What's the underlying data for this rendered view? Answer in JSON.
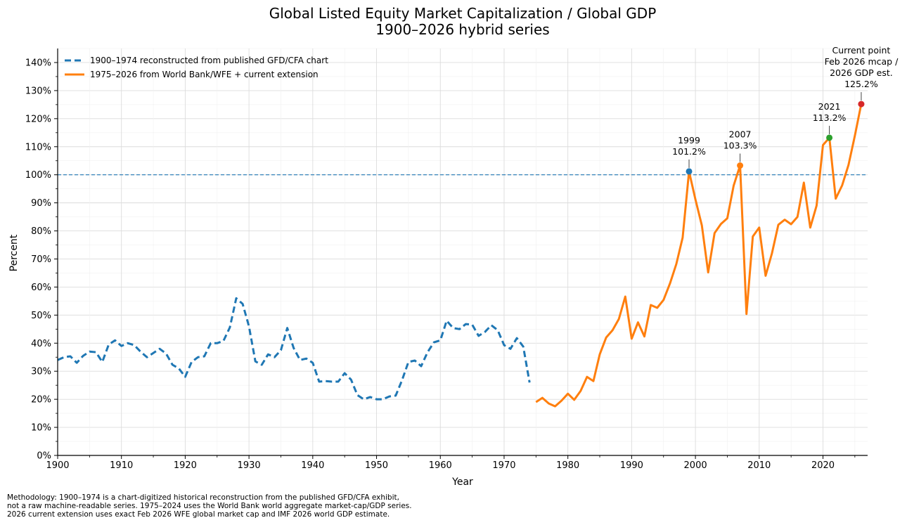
{
  "chart_data": {
    "type": "line",
    "title": "Global Listed Equity Market Capitalization / Global GDP",
    "subtitle": "1900–2026 hybrid series",
    "xlabel": "Year",
    "ylabel": "Percent",
    "xlim": [
      1900,
      2027
    ],
    "ylim": [
      0,
      145
    ],
    "x_ticks": [
      1900,
      1910,
      1920,
      1930,
      1940,
      1950,
      1960,
      1970,
      1980,
      1990,
      2000,
      2010,
      2020
    ],
    "x_tick_labels": [
      "1900",
      "1910",
      "1920",
      "1930",
      "1940",
      "1950",
      "1960",
      "1970",
      "1980",
      "1990",
      "2000",
      "2010",
      "2020"
    ],
    "y_ticks": [
      0,
      10,
      20,
      30,
      40,
      50,
      60,
      70,
      80,
      90,
      100,
      110,
      120,
      130,
      140
    ],
    "y_tick_labels": [
      "0%",
      "10%",
      "20%",
      "30%",
      "40%",
      "50%",
      "60%",
      "70%",
      "80%",
      "90%",
      "100%",
      "110%",
      "120%",
      "130%",
      "140%"
    ],
    "grid": true,
    "minor_grid": true,
    "legend_position": "top-left",
    "reference_line": {
      "y": 100,
      "style": "dashed",
      "color": "#1f77b4"
    },
    "series": [
      {
        "name": "1900–1974 reconstructed from published GFD/CFA chart",
        "color": "#1f77b4",
        "style": "dashed",
        "x": [
          1900,
          1901,
          1902,
          1903,
          1904,
          1905,
          1906,
          1907,
          1908,
          1909,
          1910,
          1911,
          1912,
          1913,
          1914,
          1915,
          1916,
          1917,
          1918,
          1919,
          1920,
          1921,
          1922,
          1923,
          1924,
          1925,
          1926,
          1927,
          1928,
          1929,
          1930,
          1931,
          1932,
          1933,
          1934,
          1935,
          1936,
          1937,
          1938,
          1939,
          1940,
          1941,
          1942,
          1943,
          1944,
          1945,
          1946,
          1947,
          1948,
          1949,
          1950,
          1951,
          1952,
          1953,
          1954,
          1955,
          1956,
          1957,
          1958,
          1959,
          1960,
          1961,
          1962,
          1963,
          1964,
          1965,
          1966,
          1967,
          1968,
          1969,
          1970,
          1971,
          1972,
          1973,
          1974
        ],
        "values": [
          34,
          35,
          35.3,
          33,
          35.5,
          37,
          36.8,
          33.3,
          39.5,
          41,
          39,
          40,
          39.3,
          37,
          35,
          36.5,
          38,
          36.3,
          32.3,
          31,
          28,
          33.3,
          35,
          35.3,
          40,
          40,
          40.8,
          45.6,
          56,
          54,
          46,
          33.5,
          32.3,
          36,
          35,
          37.5,
          45.4,
          38.3,
          34,
          34.5,
          33,
          26.3,
          26.5,
          26.3,
          26.3,
          29.3,
          27,
          21.5,
          20,
          20.8,
          20,
          20,
          21,
          21.3,
          26.8,
          33.3,
          33.8,
          31.8,
          36.8,
          40.3,
          41,
          48,
          45.4,
          45,
          46.8,
          46.6,
          42.6,
          44,
          46.4,
          44.6,
          39.3,
          38,
          41.8,
          38.8,
          26
        ]
      },
      {
        "name": "1975–2026 from World Bank/WFE + current extension",
        "color": "#ff7f0e",
        "style": "solid",
        "x": [
          1975,
          1976,
          1977,
          1978,
          1979,
          1980,
          1981,
          1982,
          1983,
          1984,
          1985,
          1986,
          1987,
          1988,
          1989,
          1990,
          1991,
          1992,
          1993,
          1994,
          1995,
          1996,
          1997,
          1998,
          1999,
          2000,
          2001,
          2002,
          2003,
          2004,
          2005,
          2006,
          2007,
          2008,
          2009,
          2010,
          2011,
          2012,
          2013,
          2014,
          2015,
          2016,
          2017,
          2018,
          2019,
          2020,
          2021,
          2022,
          2023,
          2024,
          2025,
          2026
        ],
        "values": [
          19,
          20.5,
          18.5,
          17.5,
          19.5,
          22,
          19.8,
          23,
          28,
          26.5,
          36,
          42,
          44.6,
          48.6,
          56.6,
          41.6,
          47.4,
          42.4,
          53.6,
          52.6,
          55.4,
          61.2,
          68.2,
          77.6,
          101.2,
          91.2,
          82,
          65.2,
          79.2,
          82.5,
          84.5,
          96.2,
          103.3,
          50.4,
          78,
          81.2,
          64,
          72,
          82.2,
          84,
          82.4,
          85,
          97.2,
          81.2,
          89,
          110.6,
          113.2,
          91.5,
          96.2,
          103.5,
          114,
          125.2
        ]
      }
    ],
    "annotations": [
      {
        "x": 1999,
        "y": 101.2,
        "lines": [
          "1999",
          "101.2%"
        ],
        "marker_color": "#1f77b4"
      },
      {
        "x": 2007,
        "y": 103.3,
        "lines": [
          "2007",
          "103.3%"
        ],
        "marker_color": "#ff7f0e"
      },
      {
        "x": 2021,
        "y": 113.2,
        "lines": [
          "2021",
          "113.2%"
        ],
        "marker_color": "#2ca02c"
      },
      {
        "x": 2026,
        "y": 125.2,
        "lines": [
          "Current point",
          "Feb 2026 mcap /",
          "2026 GDP est.",
          "125.2%"
        ],
        "marker_color": "#d62728"
      }
    ]
  },
  "methodology_note": "Methodology: 1900–1974 is a chart-digitized historical reconstruction from the published GFD/CFA exhibit,\nnot a raw machine-readable series. 1975–2024 uses the World Bank world aggregate market-cap/GDP series.\n2026 current extension uses exact Feb 2026 WFE global market cap and IMF 2026 world GDP estimate."
}
